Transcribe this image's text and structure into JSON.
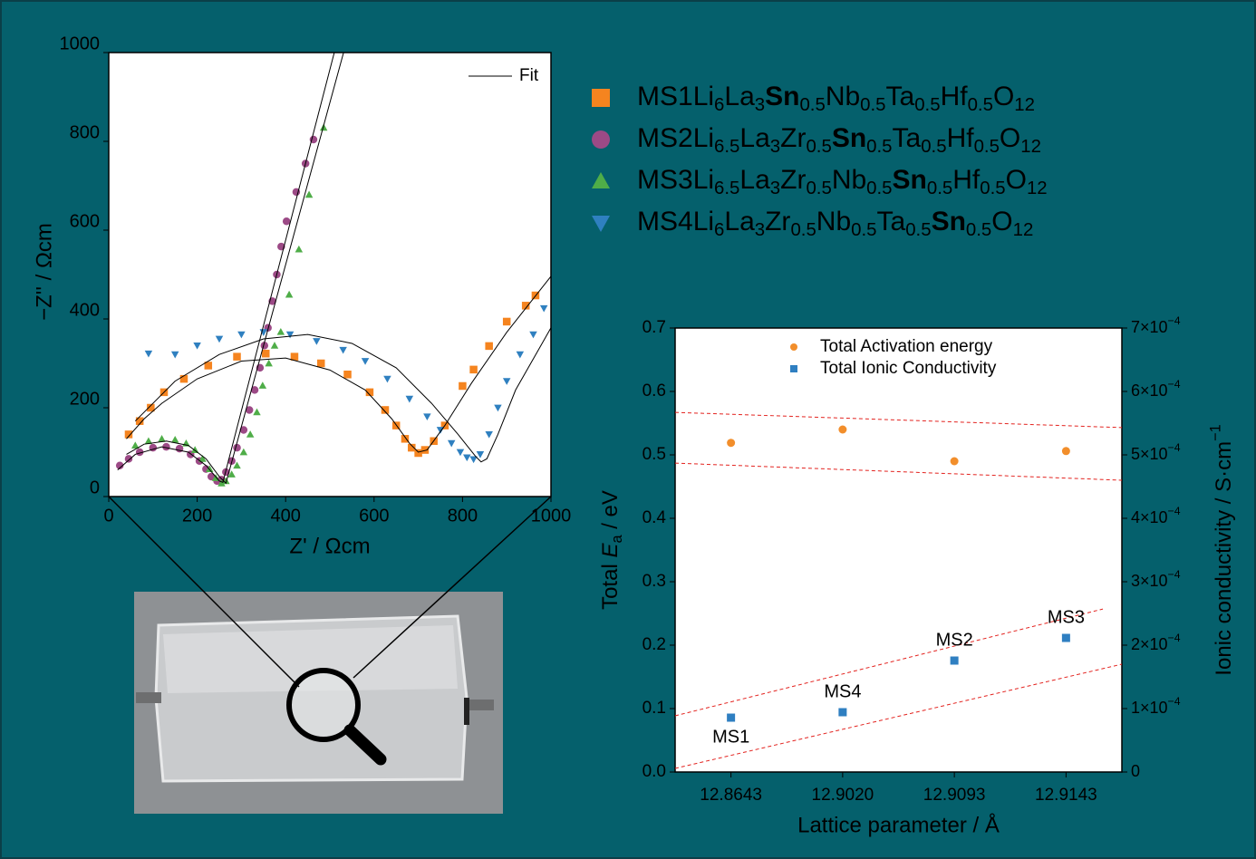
{
  "chart_data": [
    {
      "type": "scatter",
      "xlabel": "Z' / Ωcm",
      "ylabel": "−Z'' / Ωcm",
      "xlim": [
        0,
        1000
      ],
      "ylim": [
        0,
        1000
      ],
      "xticks": [
        0,
        200,
        400,
        600,
        800,
        1000
      ],
      "yticks": [
        0,
        200,
        400,
        600,
        800,
        1000
      ],
      "series": [
        {
          "name": "MS1",
          "color": "#f5841f",
          "marker": "square",
          "formula": [
            {
              "t": "Li"
            },
            {
              "t": "6",
              "sub": true
            },
            {
              "t": "La"
            },
            {
              "t": "3",
              "sub": true
            },
            {
              "t": "Sn",
              "bold": true
            },
            {
              "t": "0.5",
              "sub": true
            },
            {
              "t": "Nb"
            },
            {
              "t": "0.5",
              "sub": true
            },
            {
              "t": "Ta"
            },
            {
              "t": "0.5",
              "sub": true
            },
            {
              "t": "Hf"
            },
            {
              "t": "0.5",
              "sub": true
            },
            {
              "t": "O"
            },
            {
              "t": "12",
              "sub": true
            }
          ],
          "x": [
            45,
            70,
            95,
            125,
            170,
            225,
            290,
            355,
            420,
            480,
            540,
            590,
            625,
            650,
            670,
            685,
            700,
            715,
            735,
            760,
            800,
            825,
            860,
            900,
            943,
            965
          ],
          "y": [
            140,
            170,
            200,
            235,
            265,
            295,
            315,
            322,
            315,
            300,
            275,
            235,
            195,
            160,
            130,
            110,
            98,
            105,
            125,
            160,
            249,
            286,
            339,
            394,
            430,
            453
          ]
        },
        {
          "name": "MS2",
          "color": "#9c4a86",
          "marker": "circle",
          "formula": [
            {
              "t": "Li"
            },
            {
              "t": "6.5",
              "sub": true
            },
            {
              "t": "La"
            },
            {
              "t": "3",
              "sub": true
            },
            {
              "t": "Zr"
            },
            {
              "t": "0.5",
              "sub": true
            },
            {
              "t": "Sn",
              "bold": true
            },
            {
              "t": "0.5",
              "sub": true
            },
            {
              "t": "Ta"
            },
            {
              "t": "0.5",
              "sub": true
            },
            {
              "t": "Hf"
            },
            {
              "t": "0.5",
              "sub": true
            },
            {
              "t": "O"
            },
            {
              "t": "12",
              "sub": true
            }
          ],
          "x": [
            25,
            45,
            70,
            100,
            130,
            160,
            185,
            205,
            220,
            232,
            245,
            255,
            265,
            278,
            290,
            305,
            318,
            330,
            342,
            352,
            360,
            370,
            380,
            390,
            402,
            424,
            445,
            463
          ],
          "y": [
            70,
            85,
            100,
            110,
            112,
            108,
            95,
            80,
            62,
            45,
            35,
            38,
            55,
            80,
            110,
            150,
            195,
            240,
            290,
            340,
            380,
            440,
            500,
            563,
            620,
            686,
            750,
            804
          ]
        },
        {
          "name": "MS3",
          "color": "#4fad48",
          "marker": "triangle-up",
          "formula": [
            {
              "t": "Li"
            },
            {
              "t": "6.5",
              "sub": true
            },
            {
              "t": "La"
            },
            {
              "t": "3",
              "sub": true
            },
            {
              "t": "Zr"
            },
            {
              "t": "0.5",
              "sub": true
            },
            {
              "t": "Nb"
            },
            {
              "t": "0.5",
              "sub": true
            },
            {
              "t": "Sn",
              "bold": true
            },
            {
              "t": "0.5",
              "sub": true
            },
            {
              "t": "Hf"
            },
            {
              "t": "0.5",
              "sub": true
            },
            {
              "t": "O"
            },
            {
              "t": "12",
              "sub": true
            }
          ],
          "x": [
            60,
            90,
            120,
            150,
            175,
            195,
            212,
            228,
            242,
            255,
            265,
            278,
            290,
            305,
            320,
            335,
            348,
            362,
            375,
            389,
            408,
            430,
            453,
            486
          ],
          "y": [
            115,
            125,
            130,
            128,
            120,
            105,
            85,
            62,
            42,
            30,
            35,
            50,
            70,
            100,
            140,
            190,
            250,
            300,
            340,
            371,
            455,
            557,
            680,
            831
          ]
        },
        {
          "name": "MS4",
          "color": "#2f80c0",
          "marker": "triangle-down",
          "formula": [
            {
              "t": "Li"
            },
            {
              "t": "6",
              "sub": true
            },
            {
              "t": "La"
            },
            {
              "t": "3",
              "sub": true
            },
            {
              "t": "Zr"
            },
            {
              "t": "0.5",
              "sub": true
            },
            {
              "t": "Nb"
            },
            {
              "t": "0.5",
              "sub": true
            },
            {
              "t": "Ta"
            },
            {
              "t": "0.5",
              "sub": true
            },
            {
              "t": "Sn",
              "bold": true
            },
            {
              "t": "0.5",
              "sub": true
            },
            {
              "t": "O"
            },
            {
              "t": "12",
              "sub": true
            }
          ],
          "x": [
            90,
            150,
            200,
            250,
            300,
            350,
            410,
            470,
            530,
            580,
            630,
            680,
            720,
            750,
            775,
            795,
            810,
            825,
            840,
            860,
            880,
            900,
            930,
            960,
            984
          ],
          "y": [
            322,
            320,
            340,
            355,
            365,
            370,
            365,
            350,
            330,
            305,
            265,
            220,
            180,
            150,
            120,
            100,
            88,
            84,
            95,
            140,
            200,
            260,
            320,
            365,
            424
          ]
        }
      ],
      "fit": {
        "name": "Fit",
        "color": "#000000",
        "legend": "top-right",
        "curves": [
          {
            "x": [
              40,
              80,
              120,
              200,
              300,
              400,
              500,
              580,
              640,
              680,
              700,
              720,
              760,
              820,
              900,
              1000
            ],
            "y": [
              130,
              175,
              210,
              265,
              305,
              312,
              285,
              240,
              175,
              120,
              100,
              105,
              160,
              255,
              370,
              496
            ]
          },
          {
            "x": [
              60,
              150,
              250,
              350,
              450,
              550,
              650,
              730,
              790,
              830,
              842,
              855,
              880,
              920,
              1000
            ],
            "y": [
              170,
              260,
              320,
              355,
              365,
              345,
              290,
              210,
              140,
              90,
              78,
              85,
              140,
              240,
              380
            ]
          },
          {
            "x": [
              20,
              60,
              120,
              180,
              220,
              250,
              258,
              510
            ],
            "y": [
              60,
              95,
              112,
              100,
              70,
              35,
              32,
              1000
            ]
          },
          {
            "x": [
              40,
              80,
              130,
              180,
              220,
              250,
              265,
              531
            ],
            "y": [
              95,
              118,
              125,
              115,
              85,
              45,
              30,
              1000
            ]
          }
        ]
      }
    },
    {
      "type": "dot",
      "xlabel": "Lattice parameter / Å",
      "ylabel": [
        {
          "t": "Total "
        },
        {
          "t": "E",
          "italic": true
        },
        {
          "t": "a",
          "sub": true
        },
        {
          "t": " / eV"
        }
      ],
      "y2label": [
        {
          "t": "Ionic conductivity / S·cm"
        },
        {
          "t": "−1",
          "sup": true
        }
      ],
      "categories": [
        "12.8643",
        "12.9020",
        "12.9093",
        "12.9143"
      ],
      "ylim": [
        0,
        0.7
      ],
      "yticks": [
        {
          "value": 0,
          "label": "0.0"
        },
        0.1,
        0.2,
        0.3,
        0.4,
        0.5,
        0.6,
        0.7
      ],
      "y2lim": [
        0,
        0.0007
      ],
      "y2ticks": [
        0,
        {
          "value": 0.0001,
          "label": [
            {
              "t": "1×10"
            },
            {
              "t": "−4",
              "sup": true
            }
          ]
        },
        {
          "value": 0.0002,
          "label": [
            {
              "t": "2×10"
            },
            {
              "t": "−4",
              "sup": true
            }
          ]
        },
        {
          "value": 0.0003,
          "label": [
            {
              "t": "3×10"
            },
            {
              "t": "−4",
              "sup": true
            }
          ]
        },
        {
          "value": 0.0004,
          "label": [
            {
              "t": "4×10"
            },
            {
              "t": "−4",
              "sup": true
            }
          ]
        },
        {
          "value": 0.0005,
          "label": [
            {
              "t": "5×10"
            },
            {
              "t": "−4",
              "sup": true
            }
          ]
        },
        {
          "value": 0.0006,
          "label": [
            {
              "t": "6×10"
            },
            {
              "t": "−4",
              "sup": true
            }
          ]
        },
        {
          "value": 0.0007,
          "label": [
            {
              "t": "7×10"
            },
            {
              "t": "−4",
              "sup": true
            }
          ]
        }
      ],
      "series": [
        {
          "name": "Total Activation energy",
          "color": "#f28e2b",
          "marker": "circle",
          "axis": "y",
          "values": [
            0.519,
            0.54,
            0.49,
            0.506
          ]
        },
        {
          "name": "Total Ionic Conductivity",
          "color": "#2f7fc1",
          "marker": "square",
          "axis": "y2",
          "values": [
            8.57e-05,
            9.43e-05,
            0.0001757,
            0.0002114
          ],
          "point_labels": [
            "MS1",
            "MS4",
            "MS2",
            "MS3"
          ]
        }
      ],
      "bands": {
        "color": "#e3231f",
        "lines": [
          {
            "axis": "y",
            "x": [
              -0.5,
              3.5
            ],
            "y": [
              0.567,
              0.543
            ]
          },
          {
            "axis": "y",
            "x": [
              -0.5,
              3.5
            ],
            "y": [
              0.487,
              0.46
            ]
          },
          {
            "axis": "y2",
            "x": [
              -0.5,
              3.33
            ],
            "y": [
              8.86e-05,
              0.000257
            ]
          },
          {
            "axis": "y2",
            "x": [
              -0.5,
              3.5
            ],
            "y": [
              5.7e-06,
              0.00017
            ]
          }
        ]
      },
      "legend": "top-left"
    }
  ]
}
